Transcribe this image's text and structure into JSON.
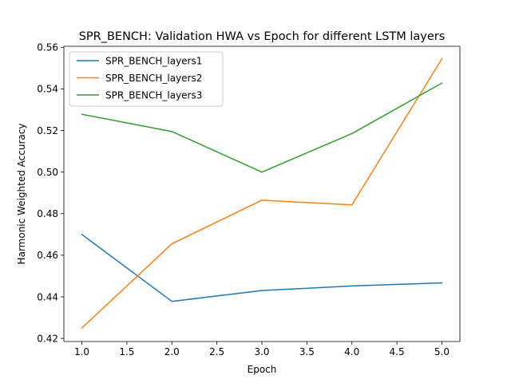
{
  "chart_data": {
    "type": "line",
    "title": "SPR_BENCH: Validation HWA vs Epoch for different LSTM layers",
    "xlabel": "Epoch",
    "ylabel": "Harmonic Weighted Accuracy",
    "x": [
      1.0,
      2.0,
      3.0,
      4.0,
      5.0
    ],
    "xlim": [
      0.8,
      5.2
    ],
    "ylim": [
      0.4185,
      0.5605
    ],
    "xticks": [
      1.0,
      1.5,
      2.0,
      2.5,
      3.0,
      3.5,
      4.0,
      4.5,
      5.0
    ],
    "xtick_labels": [
      "1.0",
      "1.5",
      "2.0",
      "2.5",
      "3.0",
      "3.5",
      "4.0",
      "4.5",
      "5.0"
    ],
    "yticks": [
      0.42,
      0.44,
      0.46,
      0.48,
      0.5,
      0.52,
      0.54,
      0.56
    ],
    "ytick_labels": [
      "0.42",
      "0.44",
      "0.46",
      "0.48",
      "0.50",
      "0.52",
      "0.54",
      "0.56"
    ],
    "grid": false,
    "legend_position": "upper-left",
    "series": [
      {
        "name": "SPR_BENCH_layers1",
        "color": "#1f77b4",
        "values": [
          0.47,
          0.4378,
          0.443,
          0.4452,
          0.4467
        ]
      },
      {
        "name": "SPR_BENCH_layers2",
        "color": "#ff7f0e",
        "values": [
          0.425,
          0.4655,
          0.4865,
          0.4842,
          0.5545
        ]
      },
      {
        "name": "SPR_BENCH_layers3",
        "color": "#2ca02c",
        "values": [
          0.5278,
          0.5195,
          0.5,
          0.5185,
          0.5428
        ]
      }
    ]
  }
}
